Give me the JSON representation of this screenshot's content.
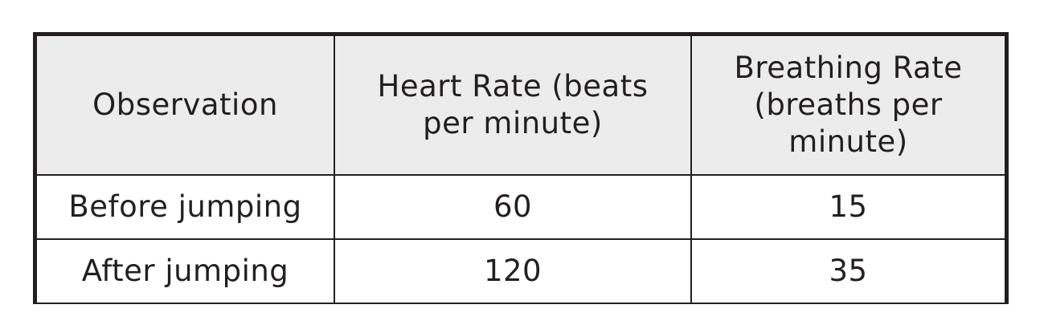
{
  "table": {
    "headers": [
      "Observation",
      "Heart Rate (beats per minute)",
      "Breathing Rate (breaths per minute)"
    ],
    "rows": [
      [
        "Before jumping",
        "60",
        "15"
      ],
      [
        "After jumping",
        "120",
        "35"
      ]
    ]
  }
}
